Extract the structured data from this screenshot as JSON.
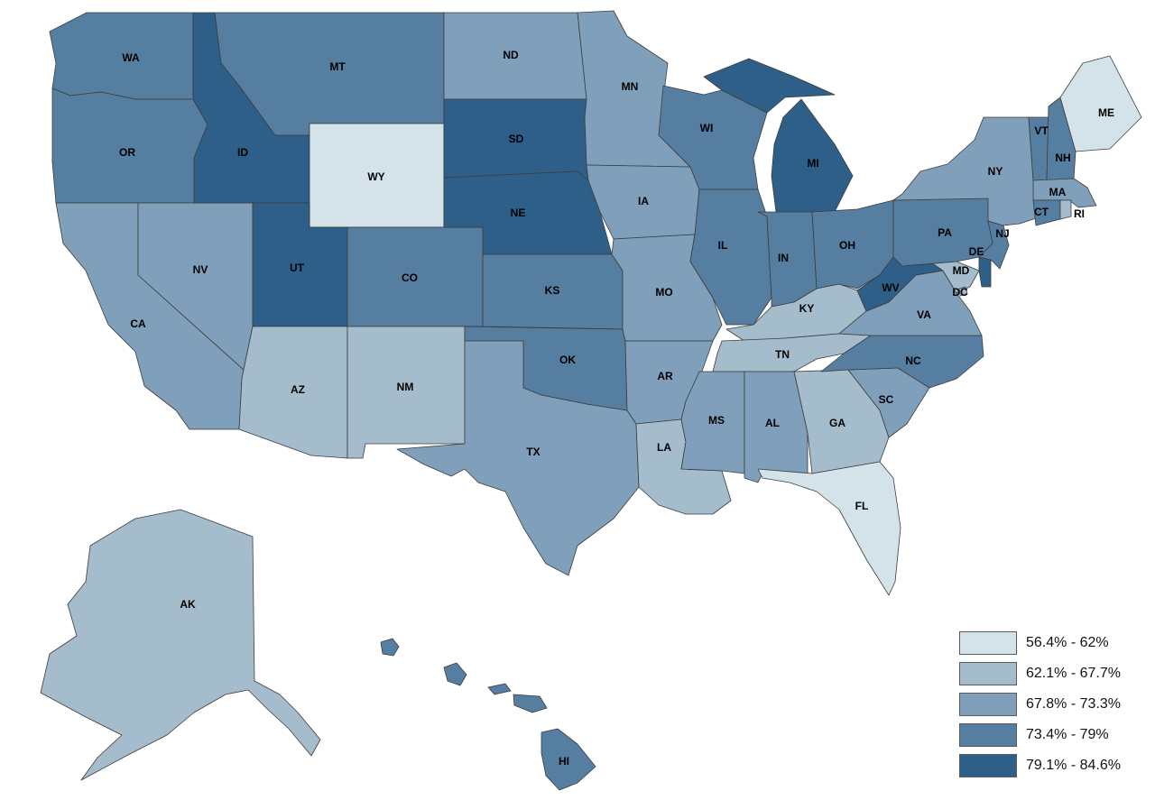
{
  "legend": {
    "items": [
      {
        "label": "56.4% - 62%",
        "color": "#d4e3ea"
      },
      {
        "label": "62.1% - 67.7%",
        "color": "#a5bccd"
      },
      {
        "label": "67.8% - 73.3%",
        "color": "#7f9fba"
      },
      {
        "label": "73.4% - 79%",
        "color": "#557ea1"
      },
      {
        "label": "79.1% - 84.6%",
        "color": "#2e5f88"
      }
    ]
  },
  "states": {
    "WA": {
      "label": "WA",
      "tier": 3
    },
    "OR": {
      "label": "OR",
      "tier": 3
    },
    "CA": {
      "label": "CA",
      "tier": 2
    },
    "NV": {
      "label": "NV",
      "tier": 2
    },
    "ID": {
      "label": "ID",
      "tier": 4
    },
    "MT": {
      "label": "MT",
      "tier": 3
    },
    "WY": {
      "label": "WY",
      "tier": 0
    },
    "UT": {
      "label": "UT",
      "tier": 4
    },
    "CO": {
      "label": "CO",
      "tier": 3
    },
    "AZ": {
      "label": "AZ",
      "tier": 1
    },
    "NM": {
      "label": "NM",
      "tier": 1
    },
    "ND": {
      "label": "ND",
      "tier": 2
    },
    "SD": {
      "label": "SD",
      "tier": 4
    },
    "NE": {
      "label": "NE",
      "tier": 4
    },
    "KS": {
      "label": "KS",
      "tier": 3
    },
    "OK": {
      "label": "OK",
      "tier": 3
    },
    "TX": {
      "label": "TX",
      "tier": 2
    },
    "MN": {
      "label": "MN",
      "tier": 2
    },
    "IA": {
      "label": "IA",
      "tier": 2
    },
    "MO": {
      "label": "MO",
      "tier": 2
    },
    "AR": {
      "label": "AR",
      "tier": 2
    },
    "LA": {
      "label": "LA",
      "tier": 1
    },
    "WI": {
      "label": "WI",
      "tier": 3
    },
    "IL": {
      "label": "IL",
      "tier": 3
    },
    "MI": {
      "label": "MI",
      "tier": 4
    },
    "IN": {
      "label": "IN",
      "tier": 3
    },
    "OH": {
      "label": "OH",
      "tier": 3
    },
    "KY": {
      "label": "KY",
      "tier": 1
    },
    "TN": {
      "label": "TN",
      "tier": 1
    },
    "MS": {
      "label": "MS",
      "tier": 2
    },
    "AL": {
      "label": "AL",
      "tier": 2
    },
    "GA": {
      "label": "GA",
      "tier": 1
    },
    "FL": {
      "label": "FL",
      "tier": 0
    },
    "SC": {
      "label": "SC",
      "tier": 2
    },
    "NC": {
      "label": "NC",
      "tier": 3
    },
    "VA": {
      "label": "VA",
      "tier": 2
    },
    "WV": {
      "label": "WV",
      "tier": 4
    },
    "PA": {
      "label": "PA",
      "tier": 3
    },
    "NY": {
      "label": "NY",
      "tier": 2
    },
    "VT": {
      "label": "VT",
      "tier": 3
    },
    "NH": {
      "label": "NH",
      "tier": 3
    },
    "ME": {
      "label": "ME",
      "tier": 0
    },
    "MA": {
      "label": "MA",
      "tier": 2
    },
    "CT": {
      "label": "CT",
      "tier": 3
    },
    "RI": {
      "label": "RI",
      "tier": 1
    },
    "NJ": {
      "label": "NJ",
      "tier": 3
    },
    "DE": {
      "label": "DE",
      "tier": 4
    },
    "MD": {
      "label": "MD",
      "tier": 1
    },
    "DC": {
      "label": "DC",
      "tier": 1
    },
    "AK": {
      "label": "AK",
      "tier": 1
    },
    "HI": {
      "label": "HI",
      "tier": 3
    }
  }
}
